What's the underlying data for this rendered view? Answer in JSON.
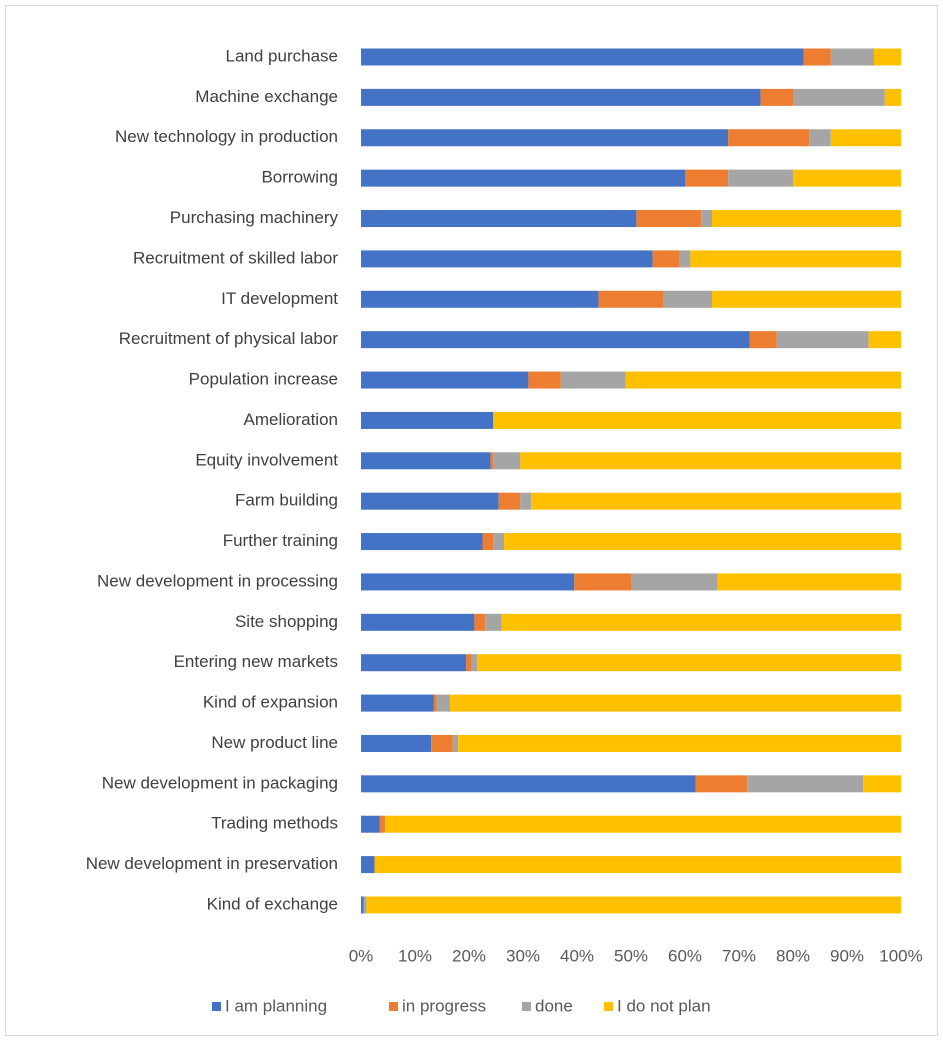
{
  "chart_data": {
    "type": "stacked_bar_horizontal",
    "categories": [
      "Land purchase",
      "Machine exchange",
      "New technology in production",
      "Borrowing",
      "Purchasing machinery",
      "Recruitment of skilled labor",
      "IT development",
      "Recruitment of physical labor",
      "Population increase",
      "Amelioration",
      "Equity involvement",
      "Farm building",
      "Further training",
      "New development in processing",
      "Site shopping",
      "Entering new markets",
      "Kind of expansion",
      "New product line",
      "New development in packaging",
      "Trading methods",
      "New development in preservation",
      "Kind of exchange"
    ],
    "series": [
      {
        "name": "I am planning",
        "color": "#4472c4",
        "values": [
          82,
          74,
          68,
          60,
          51,
          54,
          44,
          72,
          31,
          24.5,
          24,
          25.5,
          22.5,
          39.5,
          21,
          19.5,
          13.5,
          13,
          62,
          3.5,
          2.5,
          0.5
        ]
      },
      {
        "name": "in progress",
        "color": "#ed7d31",
        "values": [
          5,
          6,
          15,
          8,
          12,
          5,
          12,
          5,
          6,
          0,
          0.5,
          4,
          2,
          10.5,
          2,
          1,
          0.5,
          4,
          9.5,
          1,
          0,
          0
        ]
      },
      {
        "name": "done",
        "color": "#a5a5a5",
        "values": [
          8,
          17,
          4,
          12,
          2,
          2,
          9,
          17,
          12,
          0,
          5,
          2,
          2,
          16,
          3,
          1,
          2.5,
          1,
          21.5,
          0,
          0,
          0.5
        ]
      },
      {
        "name": "I do not plan",
        "color": "#ffc000",
        "values": [
          5,
          3,
          13,
          20,
          35,
          39,
          35,
          6,
          51,
          75.5,
          70.5,
          68.5,
          73.5,
          34,
          74,
          78.5,
          83.5,
          82,
          7,
          95.5,
          97.5,
          99
        ]
      }
    ],
    "xlim": [
      0,
      100
    ],
    "xticks": [
      {
        "value": 0,
        "label": "0%"
      },
      {
        "value": 10,
        "label": "10%"
      },
      {
        "value": 20,
        "label": "20%"
      },
      {
        "value": 30,
        "label": "30%"
      },
      {
        "value": 40,
        "label": "40%"
      },
      {
        "value": 50,
        "label": "50%"
      },
      {
        "value": 60,
        "label": "60%"
      },
      {
        "value": 70,
        "label": "70%"
      },
      {
        "value": 80,
        "label": "80%"
      },
      {
        "value": 90,
        "label": "90%"
      },
      {
        "value": 100,
        "label": "100%"
      }
    ],
    "legend": "bottom"
  }
}
